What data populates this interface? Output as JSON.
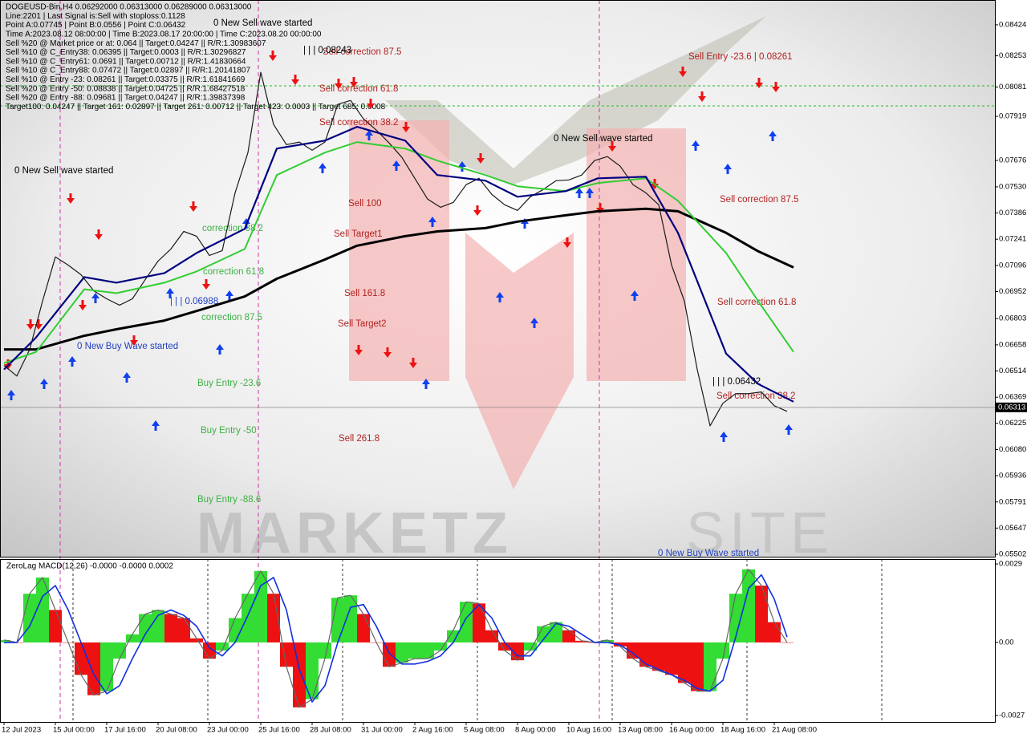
{
  "chart_data": [
    {
      "type": "line",
      "info_lines": [
        "DOGEUSD-Bin,H4  0.06292000 0.06313000 0.06289000 0.06313000",
        "Line:2201 | Last Signal is:Sell with stoploss:0.1128",
        "Point A:0.07745 | Point B:0.0556 | Point C:0.06432",
        "Time A:2023.08.12 08:00:00 | Time B:2023.08.17 20:00:00 | Time C:2023.08.20 00:00:00",
        "Sell %20 @ Market price or at: 0.064 || Target:0.04247 || R/R:1.30983607",
        "Sell %10 @ C_Entry38: 0.06395 || Target:0.0003 || R/R:1.30296827",
        "Sell %10 @ C_Entry61: 0.0691 || Target:0.00712 || R/R:1.41830664",
        "Sell %10 @ C_Entry88: 0.07472 || Target:0.02897 || R/R:1.20141807",
        "Sell %10 @ Entry -23: 0.08261 || Target:0.03375 || R/R:1.61841669",
        "Sell %20 @ Entry -50: 0.08838 || Target:0.04725 || R/R:1.68427518",
        "Sell %20 @ Entry -88: 0.09681 || Target:0.04247 || R/R:1.39837398",
        "Target100: 0.04247 || Target 161: 0.02897 || Target 261: 0.00712 || Target 423: 0.0003 || Target 685: 0.0008"
      ],
      "annotations": [
        {
          "text": "0 New Sell wave started",
          "color": "#000000"
        },
        {
          "text": "0 New Sell wave started",
          "color": "#000000"
        },
        {
          "text": "0 New Sell wave started",
          "color": "#000000"
        },
        {
          "text": "0 New Buy Wave started",
          "color": "#1f3fbf"
        },
        {
          "text": "0 New Buy Wave started",
          "color": "#1f3fbf"
        },
        {
          "text": "Sell correction 87.5",
          "color": "#b22222"
        },
        {
          "text": "Sell correction 61.8",
          "color": "#b22222"
        },
        {
          "text": "Sell correction 38.2",
          "color": "#b22222"
        },
        {
          "text": "| | | 0.08243",
          "color": "#000000"
        },
        {
          "text": "Sell Entry -23.6 | 0.08261",
          "color": "#b22222"
        },
        {
          "text": "Sell correction 87.5",
          "color": "#b22222"
        },
        {
          "text": "Sell correction 61.8",
          "color": "#b22222"
        },
        {
          "text": "Sell correction 38.2",
          "color": "#b22222"
        },
        {
          "text": "| | | 0.06432",
          "color": "#000000"
        },
        {
          "text": "Sell 100",
          "color": "#b22222"
        },
        {
          "text": "Sell Target1",
          "color": "#b22222"
        },
        {
          "text": "Sell 161.8",
          "color": "#b22222"
        },
        {
          "text": "Sell Target2",
          "color": "#b22222"
        },
        {
          "text": "Sell  261.8",
          "color": "#b22222"
        },
        {
          "text": "correction 38.2",
          "color": "#3cb043"
        },
        {
          "text": "correction 61.8",
          "color": "#3cb043"
        },
        {
          "text": "correction 87.5",
          "color": "#3cb043"
        },
        {
          "text": "| | | 0.06988",
          "color": "#1f3fbf"
        },
        {
          "text": "Buy Entry -23.6",
          "color": "#3cb043"
        },
        {
          "text": "Buy Entry -50",
          "color": "#3cb043"
        },
        {
          "text": "Buy Entry -88.6",
          "color": "#3cb043"
        }
      ],
      "last_price": 0.06313,
      "xlim": [
        -1.25,
        308.75
      ],
      "ylim": [
        0.05489,
        0.08561
      ],
      "yticks": [
        0.08424,
        0.08253,
        0.08081,
        0.07919,
        0.07676,
        {
          "value": 0.0753,
          "label": "0.07530"
        },
        0.07386,
        0.07241,
        0.07096,
        0.06952,
        0.06803,
        0.06658,
        0.06514,
        0.06369,
        0.06225,
        {
          "value": 0.0608,
          "label": "0.06080"
        },
        0.05936,
        0.05791,
        0.05647,
        0.05502
      ],
      "series": [
        {
          "color": "#1a1a1a",
          "width": 1.2,
          "x": [
            0,
            4,
            8,
            12,
            16,
            20,
            24,
            28,
            32,
            36,
            40,
            44,
            48,
            52,
            56,
            60,
            64,
            68,
            72,
            76,
            80,
            84,
            88,
            92,
            96,
            100,
            104,
            108,
            112,
            116,
            120,
            124,
            128,
            132,
            136,
            140,
            144,
            148,
            152,
            156,
            160,
            164,
            168,
            172,
            176,
            180,
            184,
            188,
            192,
            196,
            200,
            204,
            208,
            212,
            216,
            220,
            224,
            228,
            232,
            236,
            240,
            244
          ],
          "values": [
            0.06544,
            0.06486,
            0.06633,
            0.06899,
            0.07143,
            0.07098,
            0.07045,
            0.06956,
            0.06912,
            0.06877,
            0.06912,
            0.07018,
            0.0712,
            0.07187,
            0.07284,
            0.07258,
            0.07151,
            0.07178,
            0.07497,
            0.07719,
            0.08162,
            0.07874,
            0.07763,
            0.07777,
            0.07732,
            0.07777,
            0.07985,
            0.08007,
            0.07905,
            0.07843,
            0.07772,
            0.07692,
            0.07577,
            0.07462,
            0.07417,
            0.07444,
            0.07542,
            0.07577,
            0.07488,
            0.07431,
            0.074,
            0.07475,
            0.07515,
            0.07564,
            0.07568,
            0.07595,
            0.07675,
            0.07697,
            0.07644,
            0.07542,
            0.07497,
            0.07431,
            0.07098,
            0.06899,
            0.06522,
            0.06211,
            0.06336,
            0.06389,
            0.06389,
            0.06398,
            0.06322,
            0.06291
          ]
        },
        {
          "color": "#000000",
          "width": 3,
          "x": [
            0,
            10,
            25,
            35,
            50,
            60,
            75,
            85,
            100,
            110,
            125,
            135,
            150,
            160,
            175,
            185,
            200,
            210,
            225,
            235,
            246
          ],
          "values": [
            0.06633,
            0.06633,
            0.06708,
            0.06744,
            0.06792,
            0.06845,
            0.06925,
            0.07023,
            0.07129,
            0.07205,
            0.07258,
            0.07284,
            0.07302,
            0.07338,
            0.07373,
            0.07395,
            0.07409,
            0.07395,
            0.07276,
            0.07174,
            0.07085
          ]
        },
        {
          "color": "#32cd32",
          "width": 2,
          "x": [
            0,
            10,
            25,
            35,
            50,
            60,
            75,
            85,
            100,
            110,
            125,
            135,
            150,
            160,
            175,
            185,
            200,
            210,
            225,
            235,
            246
          ],
          "values": [
            0.06557,
            0.06619,
            0.06965,
            0.06943,
            0.07001,
            0.07063,
            0.07187,
            0.07595,
            0.07719,
            0.07777,
            0.07741,
            0.07675,
            0.07595,
            0.07533,
            0.07506,
            0.07551,
            0.07577,
            0.07453,
            0.07165,
            0.06899,
            0.06619
          ]
        },
        {
          "color": "#000080",
          "width": 2.2,
          "x": [
            0,
            10,
            25,
            35,
            50,
            60,
            75,
            85,
            100,
            110,
            125,
            135,
            150,
            160,
            175,
            185,
            200,
            210,
            225,
            235,
            246
          ],
          "values": [
            0.06522,
            0.06699,
            0.07032,
            0.07001,
            0.07054,
            0.07165,
            0.07298,
            0.07741,
            0.07785,
            0.07861,
            0.07785,
            0.07595,
            0.07564,
            0.07475,
            0.07506,
            0.07577,
            0.07586,
            0.07276,
            0.0661,
            0.06442,
            0.06344
          ]
        }
      ]
    },
    {
      "type": "bar",
      "title": "ZeroLag MACD(12,26) -0.0000 -0.0000 0.0002",
      "xlim": [
        -1.25,
        308.75
      ],
      "ylim": [
        -0.00294,
        0.00308
      ],
      "yticks": [
        0.0029,
        {
          "value": 0,
          "label": "0.00"
        },
        -0.0027
      ],
      "xticks": [
        {
          "value": 0,
          "label": "12 Jul 2023"
        },
        {
          "value": 16,
          "label": "15 Jul 00:00"
        },
        {
          "value": 32,
          "label": "17 Jul 16:00"
        },
        {
          "value": 48,
          "label": "20 Jul 08:00"
        },
        {
          "value": 64,
          "label": "23 Jul 00:00"
        },
        {
          "value": 80,
          "label": "25 Jul 16:00"
        },
        {
          "value": 96,
          "label": "28 Jul 08:00"
        },
        {
          "value": 112,
          "label": "31 Jul 00:00"
        },
        {
          "value": 128,
          "label": "2 Aug 16:00"
        },
        {
          "value": 144,
          "label": "5 Aug 08:00"
        },
        {
          "value": 160,
          "label": "8 Aug 00:00"
        },
        {
          "value": 176,
          "label": "10 Aug 16:00"
        },
        {
          "value": 192,
          "label": "13 Aug 08:00"
        },
        {
          "value": 208,
          "label": "16 Aug 00:00"
        },
        {
          "value": 224,
          "label": "18 Aug 16:00"
        },
        {
          "value": 240,
          "label": "21 Aug 08:00"
        }
      ],
      "up_color": "#33dd33",
      "down_color": "#ee1111",
      "series": [
        {
          "type": "bar",
          "x": [
            0,
            4,
            8,
            12,
            16,
            20,
            24,
            28,
            32,
            36,
            40,
            44,
            48,
            52,
            56,
            60,
            64,
            68,
            72,
            76,
            80,
            84,
            88,
            92,
            96,
            100,
            104,
            108,
            112,
            116,
            120,
            124,
            128,
            132,
            136,
            140,
            144,
            148,
            152,
            156,
            160,
            164,
            168,
            172,
            176,
            180,
            184,
            188,
            192,
            196,
            200,
            204,
            208,
            212,
            216,
            220,
            224,
            228,
            232,
            236,
            240,
            244
          ],
          "values": [
            9e-05,
            0,
            0.0018,
            0.0024,
            0.0012,
            0,
            -0.0012,
            -0.00195,
            -0.0018,
            -0.0006,
            0.0003,
            0.00105,
            0.0012,
            0.00105,
            0.0009,
            0.00015,
            -0.0006,
            -0.0003,
            0.0009,
            0.0018,
            0.00264,
            0.0018,
            -0.0009,
            -0.0024,
            -0.0021,
            -0.0006,
            0.00165,
            0.00174,
            0.00105,
            0,
            -0.0009,
            -0.00075,
            -0.0006,
            -0.0006,
            -0.0003,
            0.00045,
            0.0015,
            0.00144,
            0.00045,
            -0.0003,
            -0.00066,
            -0.0003,
            0.0006,
            0.00075,
            0.00045,
            6e-05,
            0,
            9e-05,
            -0.00015,
            -0.0006,
            -0.0009,
            -0.00105,
            -0.0012,
            -0.0015,
            -0.0018,
            -0.0018,
            -0.0006,
            0.0018,
            0.0027,
            0.0021,
            0.00075,
            0
          ]
        },
        {
          "type": "line",
          "color": "#1030e0",
          "x": [
            0,
            4,
            8,
            12,
            16,
            20,
            24,
            28,
            32,
            36,
            40,
            44,
            48,
            52,
            56,
            60,
            64,
            68,
            72,
            76,
            80,
            84,
            88,
            92,
            96,
            100,
            104,
            108,
            112,
            116,
            120,
            124,
            128,
            132,
            136,
            140,
            144,
            148,
            152,
            156,
            160,
            164,
            168,
            172,
            176,
            180,
            184,
            188,
            192,
            196,
            200,
            204,
            208,
            212,
            216,
            220,
            224,
            228,
            232,
            236,
            240,
            244
          ],
          "values": [
            0,
            0,
            0.0006,
            0.0017,
            0.0021,
            0.0012,
            0,
            -0.0012,
            -0.0019,
            -0.0016,
            -0.0006,
            0.0003,
            0.001,
            0.0012,
            0.001,
            0.0006,
            -0.0002,
            -0.0005,
            0,
            0.001,
            0.0021,
            0.0024,
            0.0012,
            -0.001,
            -0.0022,
            -0.0016,
            0,
            0.0013,
            0.0014,
            0.0006,
            -0.0004,
            -0.0008,
            -0.0008,
            -0.0007,
            -0.0005,
            0,
            0.0009,
            0.0014,
            0.0009,
            0,
            -0.0005,
            -0.0005,
            0.0001,
            0.0007,
            0.0006,
            0.0003,
            0,
            0,
            -0.0001,
            -0.0004,
            -0.0008,
            -0.001,
            -0.0012,
            -0.0014,
            -0.0017,
            -0.0018,
            -0.0014,
            0.0002,
            0.002,
            0.0025,
            0.0016,
            0.0002
          ]
        }
      ]
    }
  ]
}
